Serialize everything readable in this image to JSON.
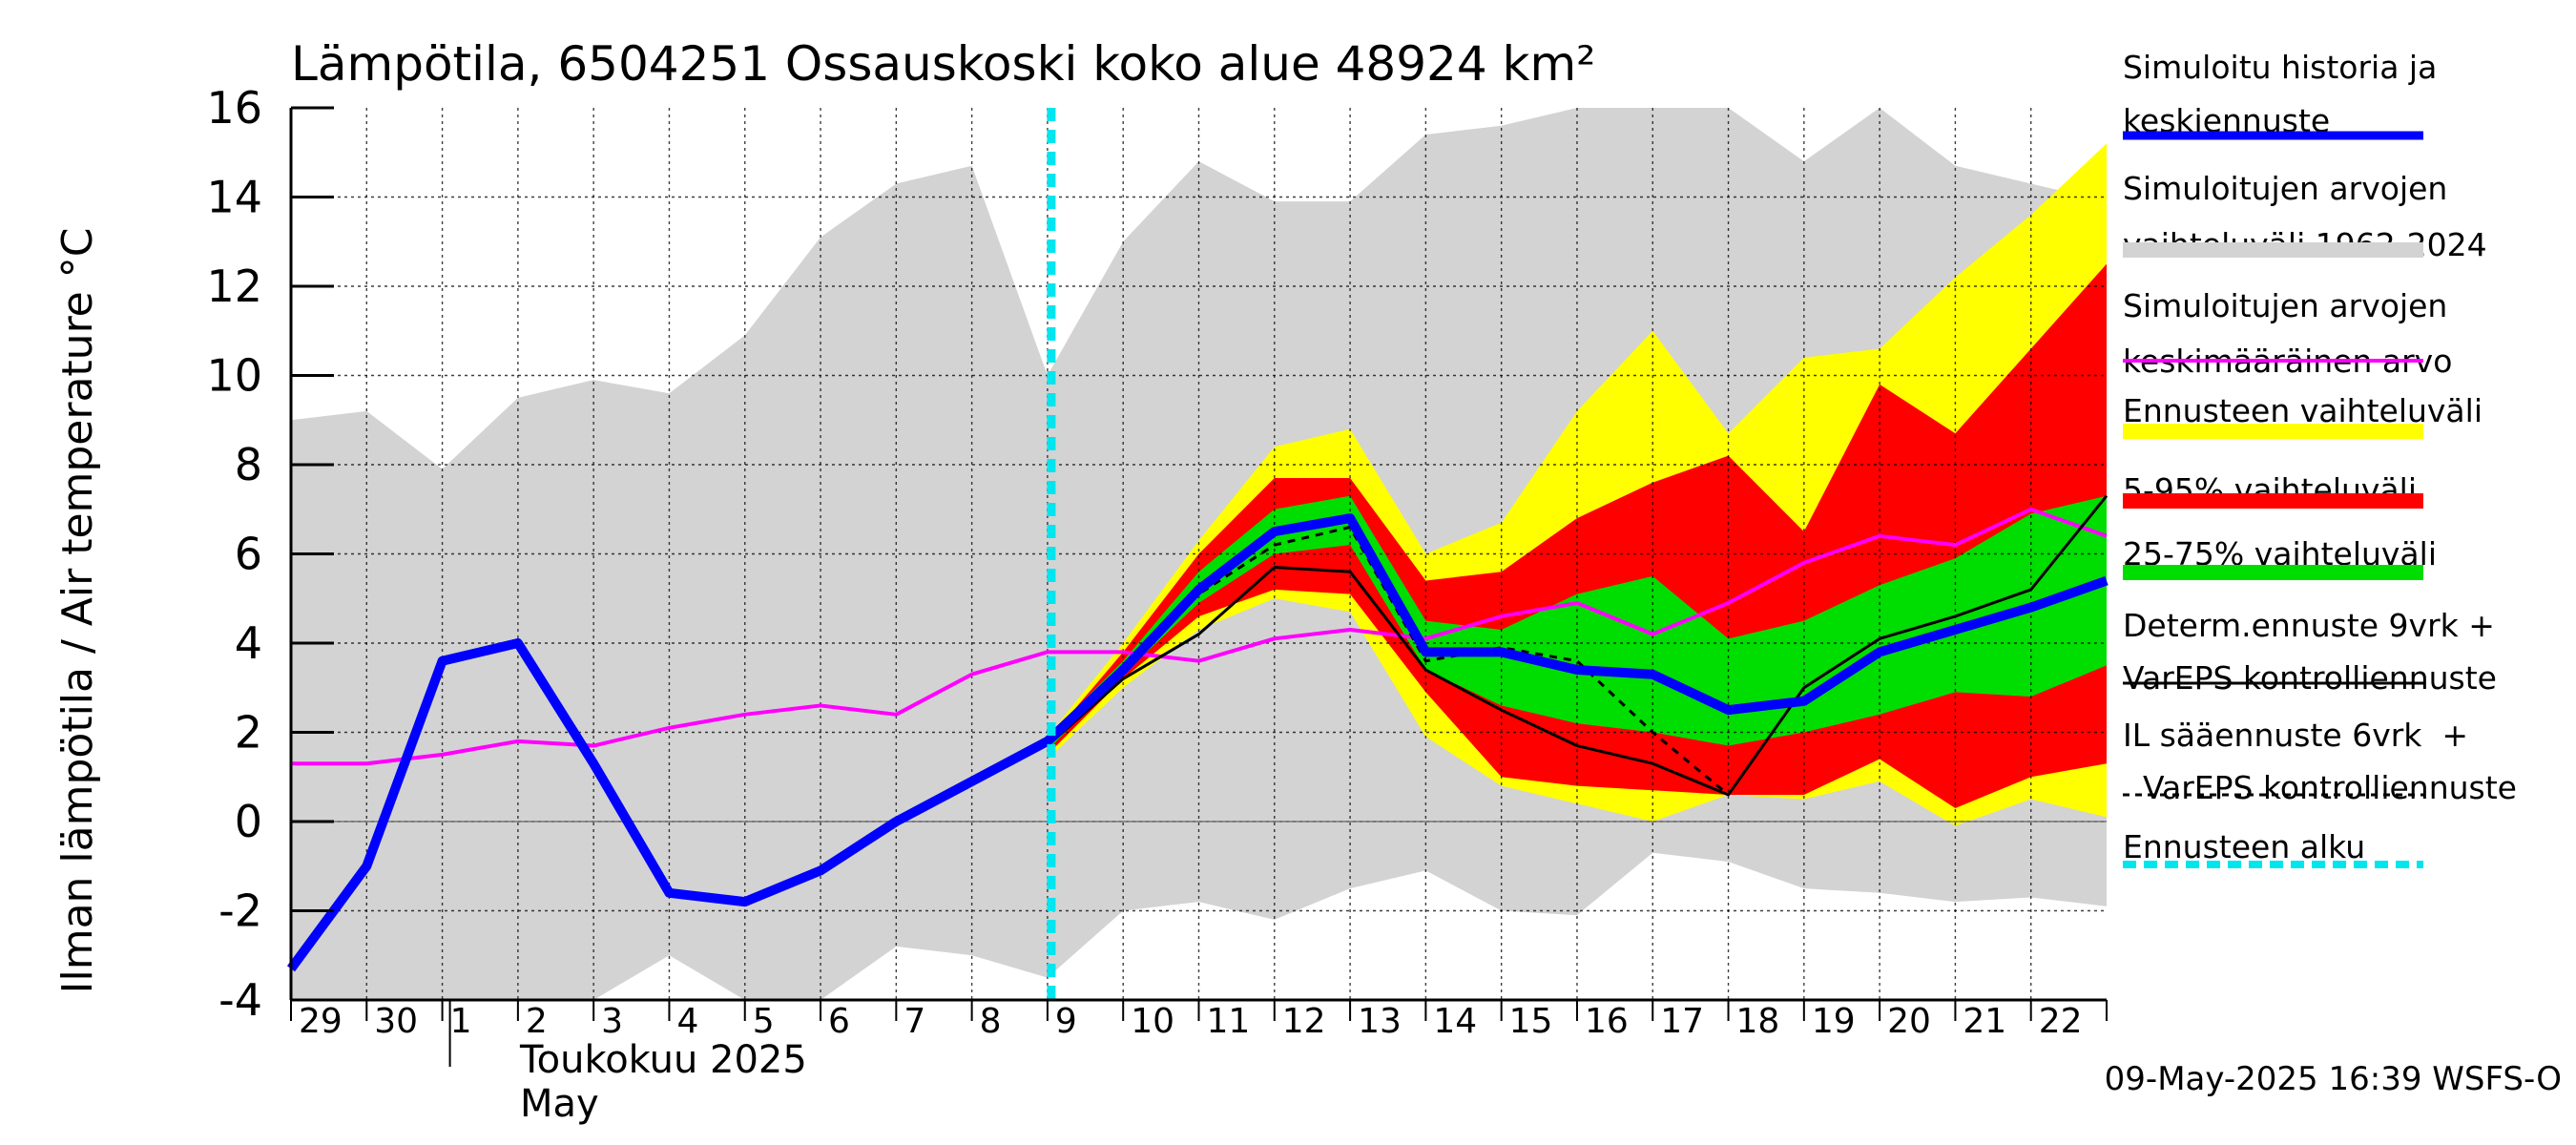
{
  "chart_data": {
    "type": "area",
    "title": "Lämpötila, 6504251 Ossauskoski koko alue 48924 km²",
    "ylabel": "Ilman lämpötila / Air temperature   °C",
    "ylim": [
      -4,
      16
    ],
    "y_ticks": [
      -4,
      -2,
      0,
      2,
      4,
      6,
      8,
      10,
      12,
      14,
      16
    ],
    "grid": true,
    "legend_position": "right",
    "x_day_labels": [
      "29",
      "30",
      "1",
      "2",
      "3",
      "4",
      "5",
      "6",
      "7",
      "8",
      "9",
      "10",
      "11",
      "12",
      "13",
      "14",
      "15",
      "16",
      "17",
      "18",
      "19",
      "20",
      "21",
      "22"
    ],
    "month_label": "Toukokuu  2025",
    "month_label_en": "May",
    "footer": "09-May-2025 16:39 WSFS-O",
    "forecast_start_x": 10.0,
    "legend": [
      {
        "label": "Simuloitu historia ja keskiennuste",
        "color": "#0000ff",
        "style": "thick"
      },
      {
        "label": "Simuloitujen arvojen vaihteluväli 1962-2024",
        "color": "#d3d3d3",
        "style": "band"
      },
      {
        "label": "Simuloitujen arvojen keskimääräinen arvo",
        "color": "#ff00ff",
        "style": "line"
      },
      {
        "label": "Ennusteen vaihteluväli",
        "color": "#ffff00",
        "style": "band"
      },
      {
        "label": "5-95% vaihteluväli",
        "color": "#ff0000",
        "style": "band"
      },
      {
        "label": "25-75% vaihteluväli",
        "color": "#00dd00",
        "style": "band"
      },
      {
        "label": "Determ.ennuste 9vrk + VarEPS kontrolliennuste",
        "color": "#000000",
        "style": "line"
      },
      {
        "label": "IL sääennuste 6vrk  + VarEPS kontrolliennuste",
        "color": "#000000",
        "style": "dashed"
      },
      {
        "label": "Ennusteen alku",
        "color": "#00e5ee",
        "style": "dashed-thick"
      }
    ],
    "series": {
      "hist_range": {
        "x": [
          0,
          1,
          2,
          3,
          4,
          5,
          6,
          7,
          8,
          9,
          10,
          11,
          12,
          13,
          14,
          15,
          16,
          17,
          18,
          19,
          20,
          21,
          22,
          23,
          24
        ],
        "upper": [
          9.0,
          9.2,
          7.9,
          9.5,
          9.9,
          9.6,
          10.9,
          13.1,
          14.3,
          14.7,
          10.0,
          13.0,
          14.8,
          13.9,
          13.9,
          15.4,
          15.6,
          16.0,
          16.0,
          16.0,
          14.8,
          16.0,
          14.7,
          14.3,
          13.9
        ],
        "lower": [
          -4.0,
          -4.0,
          -4.0,
          -4.0,
          -4.0,
          -3.0,
          -4.0,
          -4.0,
          -2.8,
          -3.0,
          -3.5,
          -2.0,
          -1.8,
          -2.2,
          -1.5,
          -1.1,
          -2.0,
          -2.1,
          -0.7,
          -0.9,
          -1.5,
          -1.6,
          -1.8,
          -1.7,
          -1.9
        ]
      },
      "forecast_range": {
        "x": [
          10,
          11,
          12,
          13,
          14,
          15,
          16,
          17,
          18,
          19,
          20,
          21,
          22,
          23,
          24
        ],
        "upper": [
          1.9,
          4.0,
          6.3,
          8.4,
          8.8,
          6.0,
          6.7,
          9.2,
          11.0,
          8.7,
          10.4,
          10.6,
          12.2,
          13.6,
          15.2
        ],
        "lower": [
          1.4,
          3.0,
          4.3,
          5.0,
          4.7,
          1.9,
          0.8,
          0.4,
          0.0,
          0.6,
          0.5,
          0.9,
          -0.1,
          0.5,
          0.1
        ]
      },
      "p5_95": {
        "x": [
          10,
          11,
          12,
          13,
          14,
          15,
          16,
          17,
          18,
          19,
          20,
          21,
          22,
          23,
          24
        ],
        "upper": [
          1.8,
          3.8,
          6.0,
          7.7,
          7.7,
          5.4,
          5.6,
          6.8,
          7.6,
          8.2,
          6.5,
          9.8,
          8.7,
          10.6,
          12.5
        ],
        "lower": [
          1.5,
          3.2,
          4.6,
          5.2,
          5.1,
          2.9,
          1.0,
          0.8,
          0.7,
          0.6,
          0.6,
          1.4,
          0.3,
          1.0,
          1.3
        ]
      },
      "p25_75": {
        "x": [
          10,
          11,
          12,
          13,
          14,
          15,
          16,
          17,
          18,
          19,
          20,
          21,
          22,
          23,
          24
        ],
        "upper": [
          1.9,
          3.6,
          5.6,
          7.0,
          7.3,
          4.5,
          4.3,
          5.1,
          5.5,
          4.1,
          4.5,
          5.3,
          5.9,
          6.9,
          7.3
        ],
        "lower": [
          1.6,
          3.3,
          4.9,
          6.0,
          6.2,
          3.4,
          2.6,
          2.2,
          2.0,
          1.7,
          2.0,
          2.4,
          2.9,
          2.8,
          3.5
        ]
      },
      "hist_mean": {
        "x": [
          0,
          1,
          2,
          3,
          4,
          5,
          6,
          7,
          8,
          9,
          10,
          11,
          12,
          13,
          14,
          15,
          16,
          17,
          18,
          19,
          20,
          21,
          22,
          23,
          24
        ],
        "y": [
          1.3,
          1.3,
          1.5,
          1.8,
          1.7,
          2.1,
          2.4,
          2.6,
          2.4,
          3.3,
          3.8,
          3.8,
          3.6,
          4.1,
          4.3,
          4.1,
          4.6,
          4.9,
          4.2,
          4.9,
          5.8,
          6.4,
          6.2,
          7.0,
          6.4
        ]
      },
      "simulated": {
        "x": [
          0,
          1,
          2,
          3,
          4,
          5,
          6,
          7,
          8,
          9,
          10,
          11,
          12,
          13,
          14,
          15,
          16,
          17,
          18,
          19,
          20,
          21,
          22,
          23,
          24
        ],
        "y": [
          -3.3,
          -1.0,
          3.6,
          4.0,
          1.3,
          -1.6,
          -1.8,
          -1.1,
          0.0,
          0.9,
          1.8,
          3.4,
          5.2,
          6.5,
          6.8,
          3.8,
          3.8,
          3.4,
          3.3,
          2.5,
          2.7,
          3.8,
          4.3,
          4.8,
          5.4
        ]
      },
      "deterministic": {
        "x": [
          10,
          11,
          12,
          13,
          14,
          15,
          16,
          17,
          18,
          19,
          20,
          21,
          22,
          23,
          24
        ],
        "y": [
          1.7,
          3.2,
          4.2,
          5.7,
          5.6,
          3.4,
          2.5,
          1.7,
          1.3,
          0.6,
          3.0,
          4.1,
          4.6,
          5.2,
          7.3
        ]
      },
      "il_forecast": {
        "x": [
          10,
          11,
          12,
          13,
          14,
          15,
          16,
          17,
          18,
          19
        ],
        "y": [
          1.8,
          3.4,
          5.1,
          6.2,
          6.6,
          3.6,
          3.9,
          3.6,
          2.0,
          0.6
        ]
      }
    }
  }
}
